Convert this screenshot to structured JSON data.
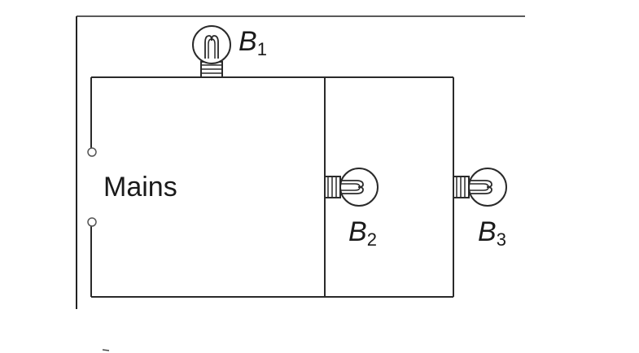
{
  "labels": {
    "mains": "Mains",
    "b1": {
      "letter": "B",
      "sub": "1"
    },
    "b2": {
      "letter": "B",
      "sub": "2"
    },
    "b3": {
      "letter": "B",
      "sub": "3"
    }
  },
  "colors": {
    "wire": "#2a2a2a",
    "background": "#ffffff"
  }
}
